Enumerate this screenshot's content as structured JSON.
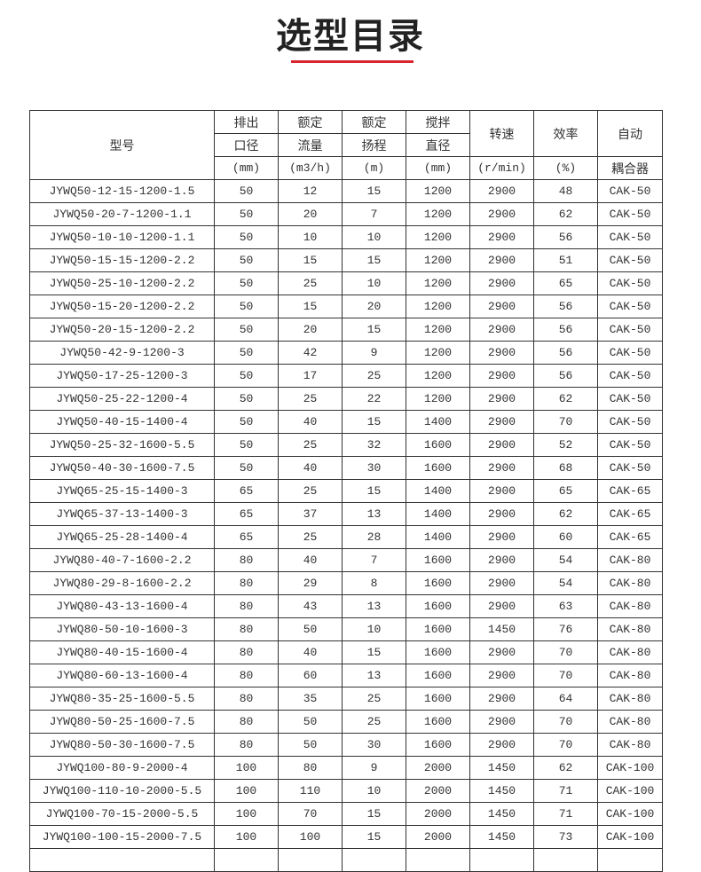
{
  "title": "选型目录",
  "accent_color": "#d9252f",
  "header": {
    "model": "型号",
    "outlet": [
      "排出",
      "口径",
      "(mm)"
    ],
    "flow": [
      "额定",
      "流量",
      "(m3/h)"
    ],
    "head": [
      "额定",
      "扬程",
      "(m)"
    ],
    "stir": [
      "搅拌",
      "直径",
      "(mm)"
    ],
    "speed": [
      "转速",
      "(r/min)"
    ],
    "eff": [
      "效率",
      "(%)"
    ],
    "coupler": [
      "自动",
      "耦合器"
    ]
  },
  "rows": [
    [
      "JYWQ50-12-15-1200-1.5",
      "50",
      "12",
      "15",
      "1200",
      "2900",
      "48",
      "CAK-50"
    ],
    [
      "JYWQ50-20-7-1200-1.1",
      "50",
      "20",
      "7",
      "1200",
      "2900",
      "62",
      "CAK-50"
    ],
    [
      "JYWQ50-10-10-1200-1.1",
      "50",
      "10",
      "10",
      "1200",
      "2900",
      "56",
      "CAK-50"
    ],
    [
      "JYWQ50-15-15-1200-2.2",
      "50",
      "15",
      "15",
      "1200",
      "2900",
      "51",
      "CAK-50"
    ],
    [
      "JYWQ50-25-10-1200-2.2",
      "50",
      "25",
      "10",
      "1200",
      "2900",
      "65",
      "CAK-50"
    ],
    [
      "JYWQ50-15-20-1200-2.2",
      "50",
      "15",
      "20",
      "1200",
      "2900",
      "56",
      "CAK-50"
    ],
    [
      "JYWQ50-20-15-1200-2.2",
      "50",
      "20",
      "15",
      "1200",
      "2900",
      "56",
      "CAK-50"
    ],
    [
      "JYWQ50-42-9-1200-3",
      "50",
      "42",
      "9",
      "1200",
      "2900",
      "56",
      "CAK-50"
    ],
    [
      "JYWQ50-17-25-1200-3",
      "50",
      "17",
      "25",
      "1200",
      "2900",
      "56",
      "CAK-50"
    ],
    [
      "JYWQ50-25-22-1200-4",
      "50",
      "25",
      "22",
      "1200",
      "2900",
      "62",
      "CAK-50"
    ],
    [
      "JYWQ50-40-15-1400-4",
      "50",
      "40",
      "15",
      "1400",
      "2900",
      "70",
      "CAK-50"
    ],
    [
      "JYWQ50-25-32-1600-5.5",
      "50",
      "25",
      "32",
      "1600",
      "2900",
      "52",
      "CAK-50"
    ],
    [
      "JYWQ50-40-30-1600-7.5",
      "50",
      "40",
      "30",
      "1600",
      "2900",
      "68",
      "CAK-50"
    ],
    [
      "JYWQ65-25-15-1400-3",
      "65",
      "25",
      "15",
      "1400",
      "2900",
      "65",
      "CAK-65"
    ],
    [
      "JYWQ65-37-13-1400-3",
      "65",
      "37",
      "13",
      "1400",
      "2900",
      "62",
      "CAK-65"
    ],
    [
      "JYWQ65-25-28-1400-4",
      "65",
      "25",
      "28",
      "1400",
      "2900",
      "60",
      "CAK-65"
    ],
    [
      "JYWQ80-40-7-1600-2.2",
      "80",
      "40",
      "7",
      "1600",
      "2900",
      "54",
      "CAK-80"
    ],
    [
      "JYWQ80-29-8-1600-2.2",
      "80",
      "29",
      "8",
      "1600",
      "2900",
      "54",
      "CAK-80"
    ],
    [
      "JYWQ80-43-13-1600-4",
      "80",
      "43",
      "13",
      "1600",
      "2900",
      "63",
      "CAK-80"
    ],
    [
      "JYWQ80-50-10-1600-3",
      "80",
      "50",
      "10",
      "1600",
      "1450",
      "76",
      "CAK-80"
    ],
    [
      "JYWQ80-40-15-1600-4",
      "80",
      "40",
      "15",
      "1600",
      "2900",
      "70",
      "CAK-80"
    ],
    [
      "JYWQ80-60-13-1600-4",
      "80",
      "60",
      "13",
      "1600",
      "2900",
      "70",
      "CAK-80"
    ],
    [
      "JYWQ80-35-25-1600-5.5",
      "80",
      "35",
      "25",
      "1600",
      "2900",
      "64",
      "CAK-80"
    ],
    [
      "JYWQ80-50-25-1600-7.5",
      "80",
      "50",
      "25",
      "1600",
      "2900",
      "70",
      "CAK-80"
    ],
    [
      "JYWQ80-50-30-1600-7.5",
      "80",
      "50",
      "30",
      "1600",
      "2900",
      "70",
      "CAK-80"
    ],
    [
      "JYWQ100-80-9-2000-4",
      "100",
      "80",
      "9",
      "2000",
      "1450",
      "62",
      "CAK-100"
    ],
    [
      "JYWQ100-110-10-2000-5.5",
      "100",
      "110",
      "10",
      "2000",
      "1450",
      "71",
      "CAK-100"
    ],
    [
      "JYWQ100-70-15-2000-5.5",
      "100",
      "70",
      "15",
      "2000",
      "1450",
      "71",
      "CAK-100"
    ],
    [
      "JYWQ100-100-15-2000-7.5",
      "100",
      "100",
      "15",
      "2000",
      "1450",
      "73",
      "CAK-100"
    ]
  ]
}
